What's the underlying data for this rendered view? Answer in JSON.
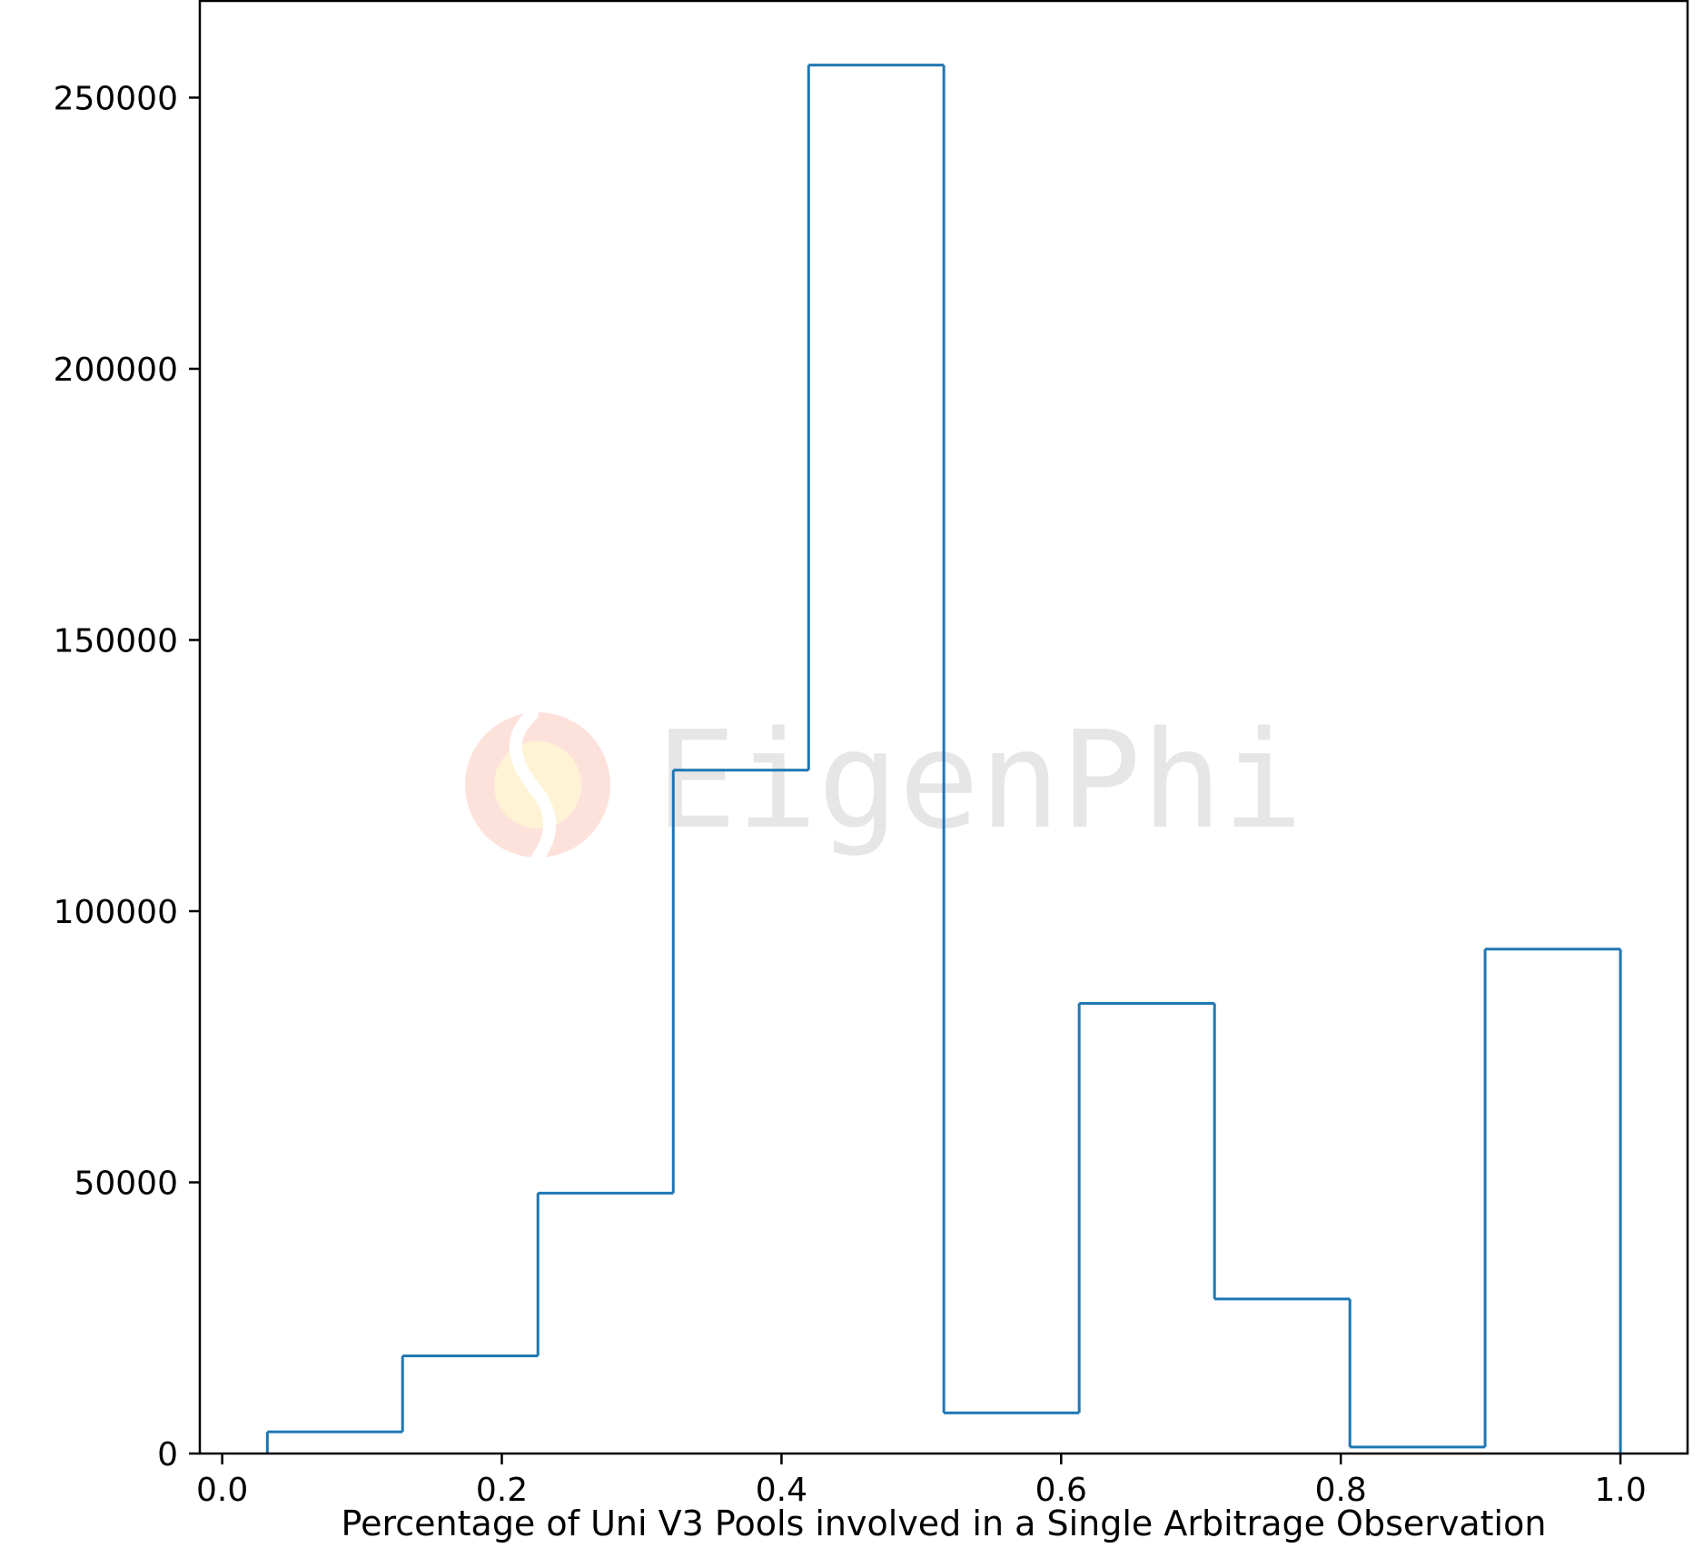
{
  "chart_data": {
    "type": "histogram",
    "title": "",
    "xlabel": "Percentage of Uni V3 Pools involved in a Single Arbitrage Observation",
    "ylabel": "",
    "xlim": [
      -0.016,
      1.048
    ],
    "ylim": [
      0,
      268000
    ],
    "grid": false,
    "legend": "none",
    "series_color": "#1f77b4",
    "watermark": "EigenPhi",
    "watermark_colors": [
      "#fde2dc",
      "#fff3d6"
    ],
    "bin_edges": [
      0.0323,
      0.129,
      0.2258,
      0.3226,
      0.4194,
      0.5161,
      0.6129,
      0.7097,
      0.8065,
      0.9032,
      1.0
    ],
    "counts": [
      4000,
      18000,
      48000,
      126000,
      256000,
      7500,
      83000,
      28500,
      1200,
      93000
    ],
    "xticks": [
      {
        "value": 0.0,
        "label": "0.0"
      },
      {
        "value": 0.2,
        "label": "0.2"
      },
      {
        "value": 0.4,
        "label": "0.4"
      },
      {
        "value": 0.6,
        "label": "0.6"
      },
      {
        "value": 0.8,
        "label": "0.8"
      },
      {
        "value": 1.0,
        "label": "1.0"
      }
    ],
    "yticks": [
      {
        "value": 0,
        "label": "0"
      },
      {
        "value": 50000,
        "label": "50000"
      },
      {
        "value": 100000,
        "label": "100000"
      },
      {
        "value": 150000,
        "label": "150000"
      },
      {
        "value": 200000,
        "label": "200000"
      },
      {
        "value": 250000,
        "label": "250000"
      }
    ]
  }
}
